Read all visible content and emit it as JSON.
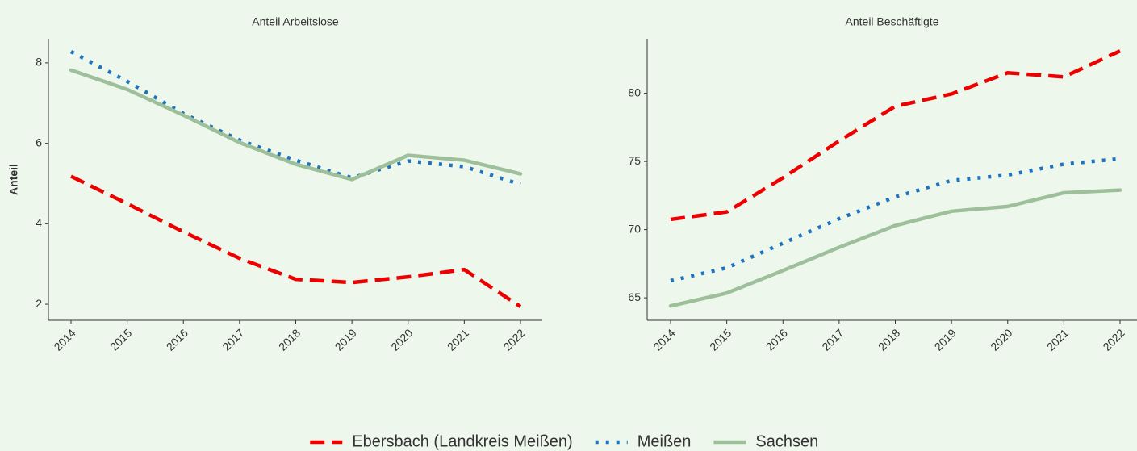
{
  "chart_data": [
    {
      "type": "line",
      "title": "Anteil Arbeitslose",
      "ylabel": "Anteil",
      "categories": [
        "2014",
        "2015",
        "2016",
        "2017",
        "2018",
        "2019",
        "2020",
        "2021",
        "2022"
      ],
      "ylim": [
        1.6,
        8.6
      ],
      "yticks": [
        2,
        4,
        6,
        8
      ],
      "legend": "bottom",
      "series": [
        {
          "name": "Ebersbach (Landkreis Meißen)",
          "color": "#ee0000",
          "dash": "dashed",
          "values": [
            5.18,
            4.5,
            3.8,
            3.14,
            2.62,
            2.54,
            2.68,
            2.86,
            1.94
          ]
        },
        {
          "name": "Meißen",
          "color": "#1e73be",
          "dash": "dotted",
          "values": [
            8.28,
            7.54,
            6.74,
            6.08,
            5.58,
            5.14,
            5.56,
            5.42,
            4.98
          ]
        },
        {
          "name": "Sachsen",
          "color": "#9dbf9a",
          "dash": "solid",
          "values": [
            7.82,
            7.34,
            6.7,
            6.02,
            5.48,
            5.1,
            5.7,
            5.58,
            5.24
          ]
        }
      ]
    },
    {
      "type": "line",
      "title": "Anteil Beschäftigte",
      "categories": [
        "2014",
        "2015",
        "2016",
        "2017",
        "2018",
        "2019",
        "2020",
        "2021",
        "2022"
      ],
      "ylim": [
        63.35,
        84.0
      ],
      "yticks": [
        65,
        70,
        75,
        80
      ],
      "series": [
        {
          "name": "Ebersbach (Landkreis Meißen)",
          "color": "#ee0000",
          "dash": "dashed",
          "values": [
            70.75,
            71.3,
            73.8,
            76.5,
            79.05,
            79.95,
            81.5,
            81.2,
            83.1
          ]
        },
        {
          "name": "Meißen",
          "color": "#1e73be",
          "dash": "dotted",
          "values": [
            66.25,
            67.2,
            69.0,
            70.8,
            72.4,
            73.6,
            74.0,
            74.8,
            75.2
          ]
        },
        {
          "name": "Sachsen",
          "color": "#9dbf9a",
          "dash": "solid",
          "values": [
            64.4,
            65.35,
            67.0,
            68.7,
            70.3,
            71.35,
            71.7,
            72.7,
            72.9
          ]
        }
      ]
    }
  ]
}
